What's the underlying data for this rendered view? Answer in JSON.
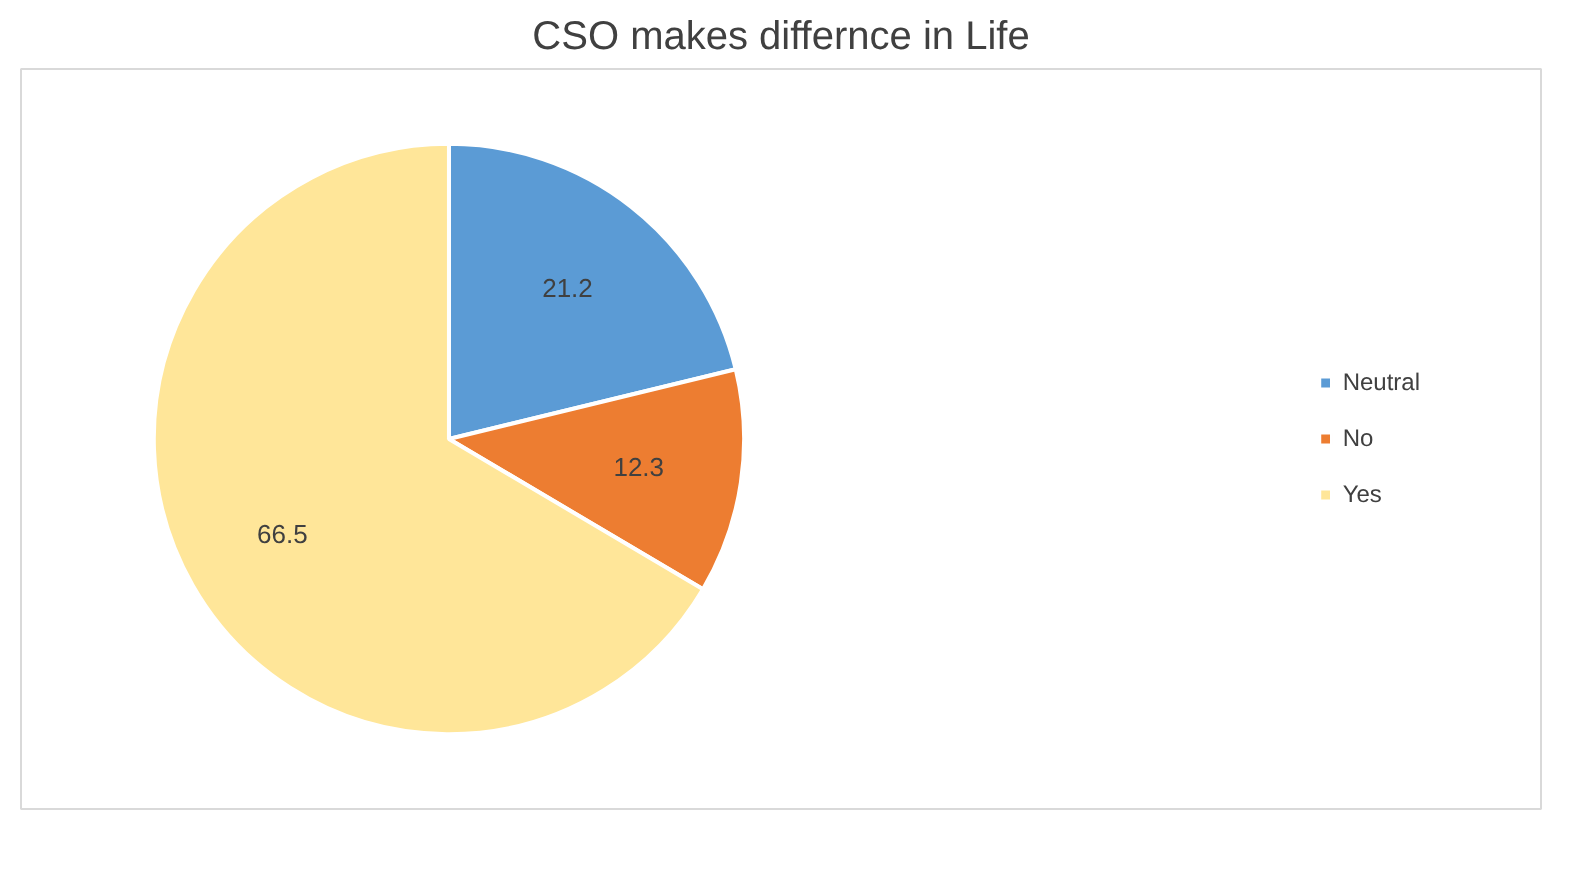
{
  "chart_data": {
    "type": "pie",
    "title": "CSO makes differnce in Life",
    "categories": [
      "Neutral",
      "No",
      "Yes"
    ],
    "values": [
      21.2,
      12.3,
      66.5
    ],
    "colors": [
      "#5b9bd5",
      "#ed7d31",
      "#ffe699"
    ],
    "data_labels": true,
    "legend": "right"
  }
}
